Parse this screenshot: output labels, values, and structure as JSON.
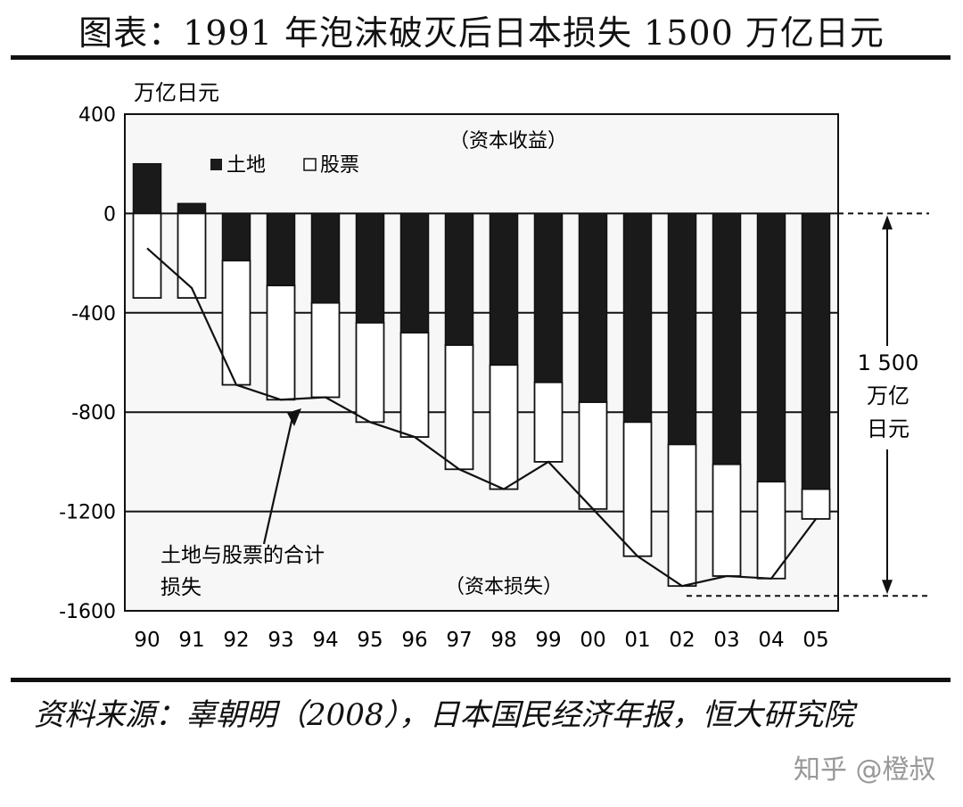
{
  "title": "图表：1991 年泡沫破灭后日本损失 1500 万亿日元",
  "source": "资料来源：辜朝明（2008），日本国民经济年报，恒大研究院",
  "watermark": "知乎 @橙叔",
  "chart_data": {
    "type": "bar",
    "stacked": true,
    "categories": [
      "90",
      "91",
      "92",
      "93",
      "94",
      "95",
      "96",
      "97",
      "98",
      "99",
      "00",
      "01",
      "02",
      "03",
      "04",
      "05"
    ],
    "series": [
      {
        "name": "土地",
        "color": "#1a1a1a",
        "values": [
          200,
          40,
          -190,
          -290,
          -360,
          -440,
          -480,
          -530,
          -610,
          -680,
          -760,
          -840,
          -930,
          -1010,
          -1080,
          -1110
        ]
      },
      {
        "name": "股票",
        "color": "#ffffff",
        "values": [
          -340,
          -340,
          -500,
          -460,
          -380,
          -400,
          -420,
          -500,
          -500,
          -320,
          -430,
          -540,
          -570,
          -450,
          -390,
          -120
        ]
      }
    ],
    "total_line": {
      "name": "土地与股票的合计损失",
      "values": [
        -140,
        -300,
        -690,
        -750,
        -740,
        -840,
        -900,
        -1030,
        -1110,
        -1000,
        -1190,
        -1380,
        -1500,
        -1460,
        -1470,
        -1230
      ]
    },
    "ylabel": "万亿日元",
    "ylim": [
      -1600,
      400
    ],
    "yticks": [
      400,
      0,
      -400,
      -800,
      -1200,
      -1600
    ],
    "annotations": {
      "gain": "（资本收益）",
      "loss": "（资本损失）",
      "total": [
        "土地与股票的合计",
        "损失"
      ],
      "span": [
        "1 500",
        "万亿",
        "日元"
      ]
    }
  }
}
